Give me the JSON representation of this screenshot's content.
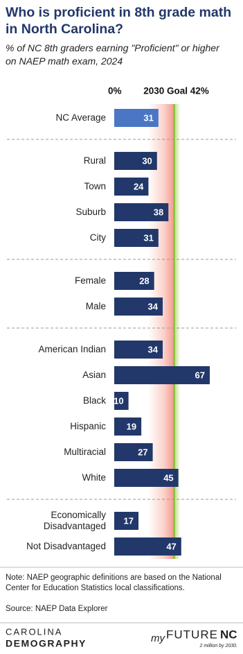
{
  "chart_data": {
    "type": "grouped-hbar",
    "title": "Who is proficient in 8th grade math in North Carolina?",
    "subtitle": "% of NC 8th graders earning \"Proficient\" or higher on NAEP math exam, 2024",
    "xlim": [
      0,
      84
    ],
    "xticks": [
      {
        "value": 0,
        "label": "0%"
      },
      {
        "value": 42,
        "label": "2030 Goal 42%"
      }
    ],
    "groups": [
      {
        "color": "#4a76c4",
        "categories": [
          "NC Average"
        ],
        "values": [
          31
        ]
      },
      {
        "color": "#22386a",
        "categories": [
          "Rural",
          "Town",
          "Suburb",
          "City"
        ],
        "values": [
          30,
          24,
          38,
          31
        ]
      },
      {
        "color": "#22386a",
        "categories": [
          "Female",
          "Male"
        ],
        "values": [
          28,
          34
        ]
      },
      {
        "color": "#22386a",
        "categories": [
          "American Indian",
          "Asian",
          "Black",
          "Hispanic",
          "Multiracial",
          "White"
        ],
        "values": [
          34,
          67,
          10,
          19,
          27,
          45
        ]
      },
      {
        "color": "#22386a",
        "categories": [
          "Economically Disadvantaged",
          "Not Disadvantaged"
        ],
        "values": [
          17,
          47
        ]
      }
    ],
    "note": "Note: NAEP geographic definitions are based on the National Center for Education Statistics local classifications.",
    "source": "Source: NAEP Data Explorer"
  },
  "branding": {
    "left_top": "CAROLINA",
    "left_bottom": "DEMOGRAPHY",
    "right_my": "my",
    "right_future": "FUTURE",
    "right_nc": "NC",
    "right_tagline": "2 million by 2030."
  }
}
